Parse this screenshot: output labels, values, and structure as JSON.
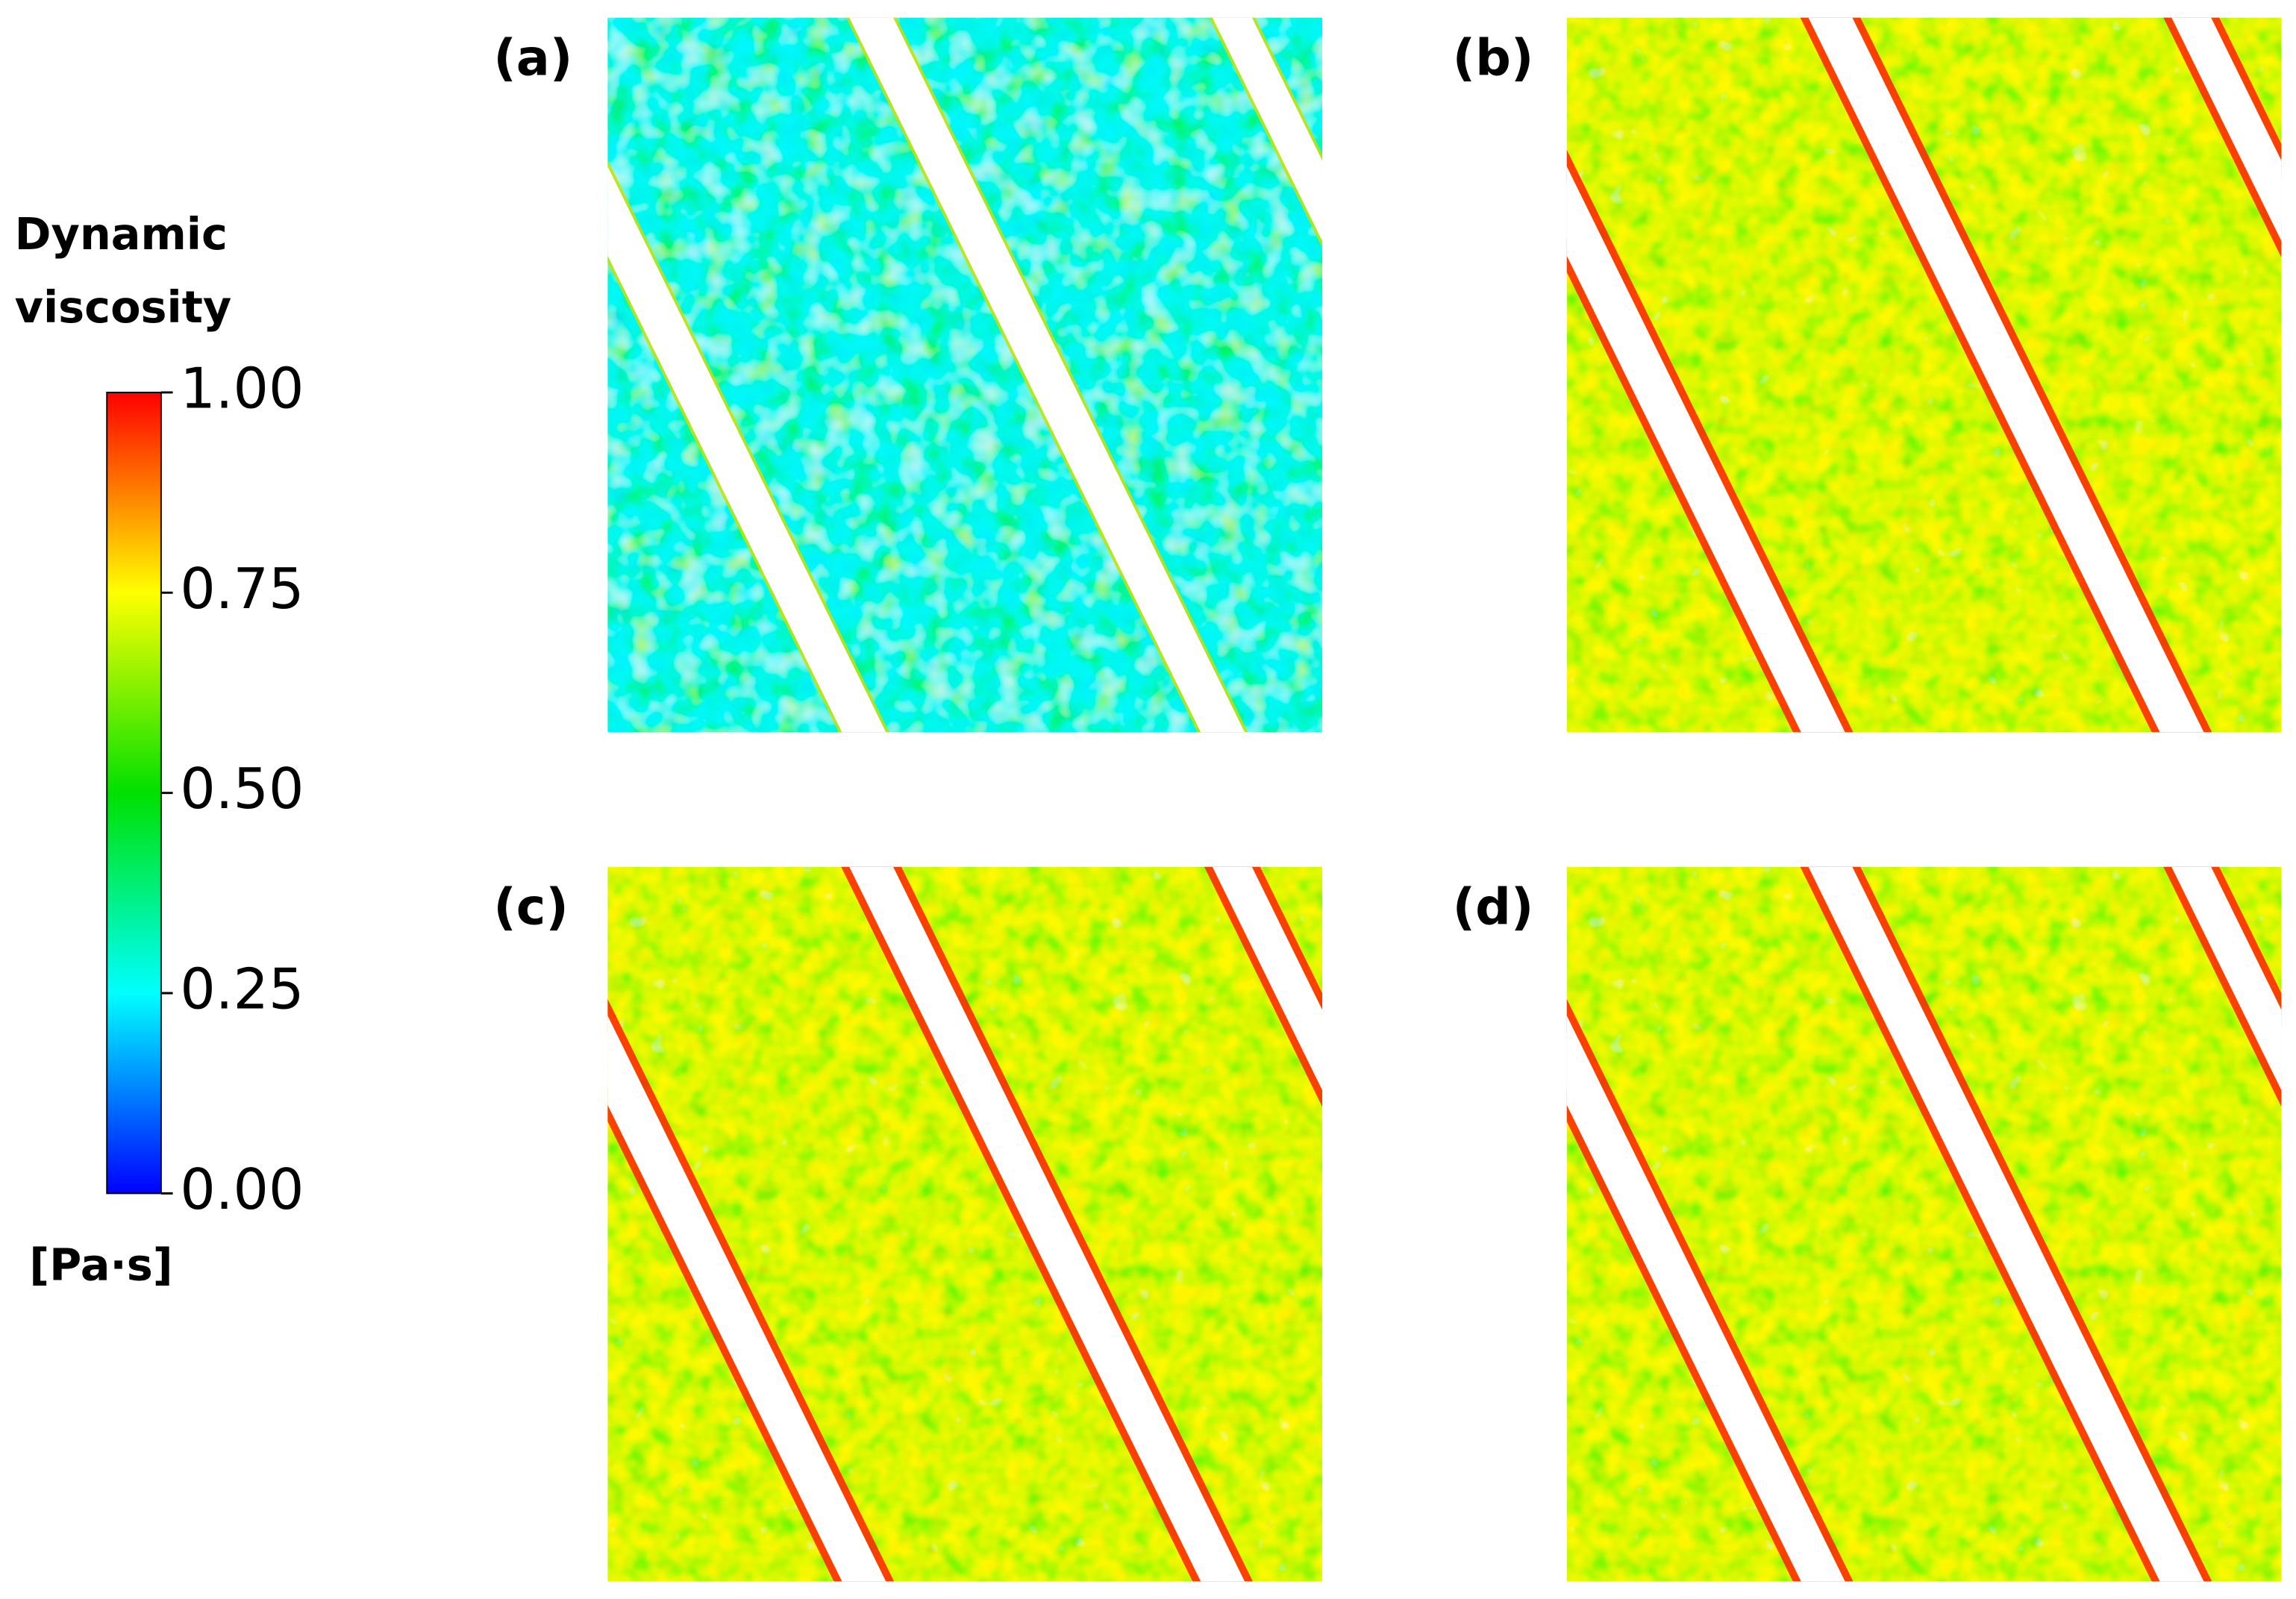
{
  "colorbar": {
    "title": [
      "Dynamic",
      "viscosity"
    ],
    "unit": "[Pa·s]",
    "range": [
      0,
      1
    ],
    "ticks": [
      {
        "value": 0,
        "label": "0.00"
      },
      {
        "value": 0.25,
        "label": "0.25"
      },
      {
        "value": 0.5,
        "label": "0.50"
      },
      {
        "value": 0.75,
        "label": "0.75"
      },
      {
        "value": 1,
        "label": "1.00"
      }
    ]
  },
  "panels": [
    {
      "label": "(a)"
    },
    {
      "label": "(b)"
    },
    {
      "label": "(c)"
    },
    {
      "label": "(d)"
    }
  ]
}
